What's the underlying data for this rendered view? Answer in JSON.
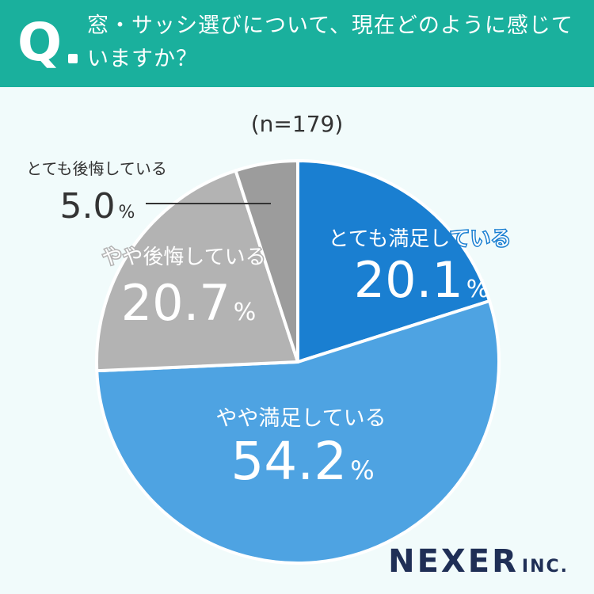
{
  "question": {
    "mark": "Q",
    "text": "窓・サッシ選びについて、現在どのように感じていますか？"
  },
  "sample_label": "(n=179)",
  "logo": {
    "main": "NEXER",
    "suffix": "INC."
  },
  "colors": {
    "header": "#1ab09d",
    "background": "#f1fbfb",
    "very_satisfied": "#1a7fd1",
    "somewhat_satisfied": "#4ea3e2",
    "somewhat_regret": "#b3b3b3",
    "very_regret": "#9c9c9c"
  },
  "chart_data": {
    "type": "pie",
    "title": "",
    "slices": [
      {
        "label": "とても満足している",
        "value": 20.1,
        "display": "20.1",
        "unit": "%",
        "color": "#1a7fd1"
      },
      {
        "label": "やや満足している",
        "value": 54.2,
        "display": "54.2",
        "unit": "%",
        "color": "#4ea3e2"
      },
      {
        "label": "やや後悔している",
        "value": 20.7,
        "display": "20.7",
        "unit": "%",
        "color": "#b3b3b3"
      },
      {
        "label": "とても後悔している",
        "value": 5.0,
        "display": "5.0",
        "unit": "%",
        "color": "#9c9c9c"
      }
    ],
    "start": "top",
    "direction": "clockwise",
    "legend": "none"
  }
}
